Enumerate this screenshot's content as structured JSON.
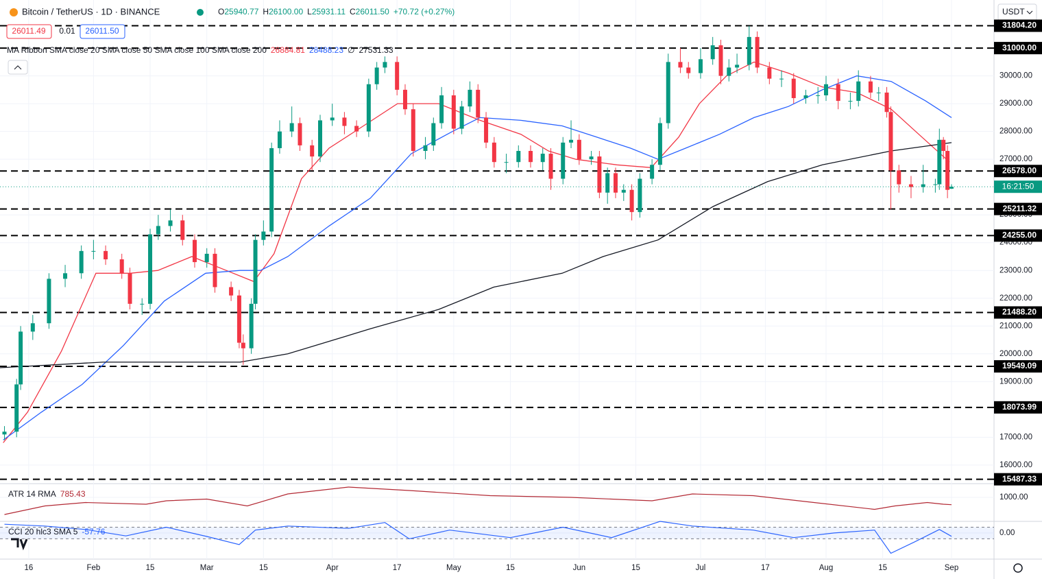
{
  "header": {
    "symbol": "Bitcoin / TetherUS · 1D · BINANCE",
    "ohlc": [
      {
        "label": "O",
        "value": "25940.77"
      },
      {
        "label": "H",
        "value": "26100.00"
      },
      {
        "label": "L",
        "value": "25931.11"
      },
      {
        "label": "C",
        "value": "26011.50"
      }
    ],
    "change": "+70.72 (+0.27%)",
    "bid": "26011.49",
    "spread": "0.01",
    "ask": "26011.50",
    "currency": "USDT",
    "countdown": "16:21:50"
  },
  "chart_data": [
    {
      "type": "candlestick",
      "up_color": "#089981",
      "down_color": "#f23645",
      "xlim": [
        8.9,
        254.5
      ],
      "ylim": [
        15330,
        32730
      ],
      "xticks": [
        {
          "value": 16,
          "label": "16"
        },
        {
          "value": 32,
          "label": "Feb"
        },
        {
          "value": 46,
          "label": "15"
        },
        {
          "value": 60,
          "label": "Mar"
        },
        {
          "value": 74,
          "label": "15"
        },
        {
          "value": 91,
          "label": "Apr"
        },
        {
          "value": 107,
          "label": "17"
        },
        {
          "value": 121,
          "label": "May"
        },
        {
          "value": 135,
          "label": "15"
        },
        {
          "value": 152,
          "label": "Jun"
        },
        {
          "value": 166,
          "label": "15"
        },
        {
          "value": 182,
          "label": "Jul"
        },
        {
          "value": 198,
          "label": "17"
        },
        {
          "value": 213,
          "label": "Aug"
        },
        {
          "value": 227,
          "label": "15"
        },
        {
          "value": 244,
          "label": "Sep"
        }
      ],
      "yticks": [
        {
          "value": 16000,
          "label": "16000.00"
        },
        {
          "value": 17000,
          "label": "17000.00"
        },
        {
          "value": 19000,
          "label": "19000.00"
        },
        {
          "value": 20000,
          "label": "20000.00"
        },
        {
          "value": 21000,
          "label": "21000.00"
        },
        {
          "value": 22000,
          "label": "22000.00"
        },
        {
          "value": 23000,
          "label": "23000.00"
        },
        {
          "value": 24000,
          "label": "24000.00"
        },
        {
          "value": 25000,
          "label": "25000.00"
        },
        {
          "value": 27000,
          "label": "27000.00"
        },
        {
          "value": 28000,
          "label": "28000.00"
        },
        {
          "value": 29000,
          "label": "29000.00"
        },
        {
          "value": 30000,
          "label": "30000.00"
        }
      ],
      "levels": [
        {
          "value": 31804.2,
          "label": "31804.20"
        },
        {
          "value": 31000,
          "label": "31000.00"
        },
        {
          "value": 26578,
          "label": "26578.00"
        },
        {
          "value": 25211.32,
          "label": "25211.32"
        },
        {
          "value": 24255,
          "label": "24255.00"
        },
        {
          "value": 21488.2,
          "label": "21488.20"
        },
        {
          "value": 19549.09,
          "label": "19549.09"
        },
        {
          "value": 18073.99,
          "label": "18073.99"
        },
        {
          "value": 15487.33,
          "label": "15487.33"
        }
      ],
      "x": [
        10,
        13,
        14,
        17,
        21,
        25,
        29,
        32,
        35,
        39,
        41,
        44,
        46,
        48,
        51,
        54,
        57,
        60,
        62,
        66,
        68,
        69,
        71,
        72,
        74,
        76,
        78,
        81,
        83,
        86,
        88,
        91,
        94,
        97,
        100,
        102,
        104,
        107,
        109,
        111,
        114,
        116,
        118,
        121,
        123,
        125,
        127,
        129,
        131,
        134,
        137,
        140,
        143,
        145,
        148,
        150,
        152,
        155,
        157,
        159,
        161,
        163,
        165,
        167,
        170,
        172,
        174,
        177,
        179,
        182,
        185,
        187,
        189,
        191,
        194,
        196,
        199,
        202,
        205,
        208,
        211,
        213,
        216,
        219,
        221,
        224,
        226,
        228,
        229,
        231,
        234,
        237,
        240,
        241,
        242,
        243,
        244
      ],
      "open": [
        17100,
        17200,
        18900,
        20800,
        21100,
        22700,
        22900,
        23700,
        23700,
        23400,
        22900,
        21800,
        21800,
        24300,
        24600,
        24800,
        24100,
        23300,
        23600,
        22400,
        22100,
        20400,
        20200,
        21800,
        24100,
        24400,
        27400,
        28000,
        28300,
        27500,
        27100,
        28400,
        28500,
        28200,
        28000,
        29700,
        30300,
        30500,
        29500,
        28800,
        27300,
        27500,
        28300,
        29300,
        28100,
        28900,
        29500,
        28500,
        27600,
        26900,
        26900,
        27300,
        26900,
        27200,
        26300,
        27600,
        27700,
        27000,
        27100,
        25800,
        26500,
        25800,
        25900,
        25100,
        26300,
        26800,
        28300,
        30500,
        30300,
        30100,
        30600,
        31100,
        30000,
        30300,
        30400,
        31400,
        30300,
        29900,
        29900,
        29200,
        29300,
        29300,
        29700,
        29100,
        29100,
        29800,
        29400,
        29400,
        28700,
        26600,
        26100,
        26000,
        26100,
        26100,
        27700,
        27300,
        25940.77
      ],
      "high": [
        17400,
        19100,
        21000,
        21400,
        22900,
        23200,
        23900,
        24100,
        23900,
        23600,
        23100,
        22000,
        24500,
        25000,
        25200,
        25000,
        24300,
        23800,
        23800,
        22600,
        22300,
        20700,
        22000,
        24300,
        24800,
        27600,
        28400,
        28900,
        28500,
        27700,
        28600,
        29000,
        28700,
        28400,
        29900,
        30500,
        30700,
        30700,
        29700,
        29000,
        27800,
        28500,
        29600,
        29500,
        29100,
        29800,
        29700,
        28700,
        27800,
        27200,
        27500,
        27500,
        27400,
        27400,
        27800,
        28400,
        27900,
        27300,
        27300,
        26700,
        26700,
        26100,
        26100,
        26500,
        27000,
        28500,
        30800,
        31000,
        30500,
        31000,
        31400,
        31300,
        30600,
        30800,
        31800,
        31600,
        30500,
        30200,
        30100,
        29500,
        29600,
        30000,
        29900,
        29400,
        30200,
        30000,
        29600,
        29600,
        28900,
        26800,
        26400,
        26800,
        26300,
        28100,
        27800,
        27500,
        26100
      ],
      "low": [
        16900,
        17000,
        18700,
        20500,
        20900,
        22400,
        22700,
        23400,
        23200,
        22700,
        21600,
        21400,
        21600,
        24100,
        24400,
        23900,
        23100,
        23100,
        22200,
        21900,
        20200,
        19600,
        20000,
        21600,
        23900,
        24200,
        27200,
        27800,
        27300,
        26600,
        26900,
        28200,
        27900,
        27800,
        27800,
        29500,
        30100,
        29300,
        28600,
        27100,
        27000,
        27300,
        28100,
        27900,
        27900,
        28700,
        28300,
        27400,
        26700,
        26500,
        26700,
        26700,
        26600,
        25900,
        26100,
        27400,
        26800,
        26800,
        25600,
        25400,
        25600,
        25500,
        24800,
        24900,
        26100,
        26600,
        28100,
        30100,
        29900,
        29900,
        30400,
        29700,
        29800,
        30100,
        30200,
        30100,
        29700,
        29600,
        29000,
        29000,
        29000,
        29100,
        28800,
        28800,
        28900,
        29200,
        29100,
        28500,
        25200,
        25800,
        25600,
        25800,
        25800,
        25900,
        27000,
        25600,
        25931.11
      ],
      "close": [
        17200,
        18900,
        20800,
        21100,
        22700,
        22900,
        23700,
        23700,
        23400,
        22900,
        21800,
        21800,
        24300,
        24600,
        24800,
        24100,
        23300,
        23600,
        22400,
        22100,
        20400,
        20200,
        21800,
        24100,
        24400,
        27400,
        28000,
        28300,
        27500,
        27100,
        28400,
        28500,
        28200,
        28000,
        29700,
        30300,
        30500,
        29500,
        28800,
        27300,
        27500,
        28300,
        29300,
        28100,
        28900,
        29500,
        28500,
        27600,
        26900,
        26900,
        27300,
        26900,
        27200,
        26300,
        27600,
        27700,
        27000,
        27100,
        25800,
        26500,
        25800,
        25900,
        25100,
        26300,
        26800,
        28300,
        30500,
        30300,
        30100,
        30600,
        31100,
        30000,
        30300,
        30400,
        31400,
        30300,
        29900,
        29900,
        29200,
        29300,
        29300,
        29700,
        29100,
        29100,
        29800,
        29400,
        29400,
        28700,
        26600,
        26100,
        26000,
        26100,
        26100,
        27700,
        27300,
        25900,
        26011.5
      ],
      "indicator_title": "MA Ribbon SMA close 20 SMA close 50 SMA close 100 SMA close 200",
      "legend_values": [
        {
          "text": "26884.81",
          "color": "#f23645"
        },
        {
          "text": "28488.23",
          "color": "#2962ff"
        },
        {
          "text": "∅",
          "color": "#131722"
        },
        {
          "text": "27531.33",
          "color": "#131722"
        }
      ],
      "series": [
        {
          "color": "#f23645",
          "x": [
            9.7,
            15.7,
            24.1,
            32.6,
            41.1,
            47.9,
            56.3,
            64.8,
            71.6,
            76.6,
            83.4,
            90.2,
            98.7,
            107.1,
            117.3,
            127.5,
            137.6,
            144.4,
            151.2,
            161.3,
            169.8,
            176.6,
            181.7,
            188.4,
            195.2,
            203.7,
            212.1,
            220.6,
            229.1,
            235.9,
            243.5
          ],
          "values": [
            16800,
            17900,
            20100,
            22900,
            22900,
            23000,
            23500,
            23000,
            22600,
            23600,
            26300,
            27400,
            28200,
            29000,
            29000,
            28400,
            27900,
            27300,
            27000,
            26800,
            26700,
            27800,
            29000,
            30000,
            30500,
            30100,
            29600,
            29400,
            28800,
            27900,
            26900
          ]
        },
        {
          "color": "#2962ff",
          "x": [
            9.7,
            19.1,
            29.2,
            39.4,
            49.5,
            59.7,
            68.2,
            73.3,
            80,
            90.2,
            100.4,
            110.5,
            120.7,
            127.5,
            137.6,
            147.8,
            156.3,
            164.7,
            171.5,
            178.3,
            186.7,
            195.2,
            203.7,
            212.1,
            220.6,
            229.1,
            237.6,
            244
          ],
          "values": [
            16900,
            17900,
            18900,
            20300,
            21900,
            22900,
            23000,
            23000,
            23500,
            24600,
            25600,
            27200,
            28000,
            28500,
            28400,
            28200,
            27800,
            27400,
            27000,
            27400,
            27900,
            28500,
            28900,
            29500,
            30000,
            29800,
            29100,
            28500
          ]
        },
        {
          "color": "#131722",
          "x": [
            8.9,
            34.3,
            68.2,
            80,
            100.4,
            117.3,
            130.9,
            147.8,
            157.9,
            171.5,
            185.1,
            198.6,
            212.1,
            229.1,
            244
          ],
          "values": [
            19500,
            19700,
            19700,
            20000,
            20900,
            21600,
            22400,
            22900,
            23500,
            24100,
            25300,
            26200,
            26800,
            27300,
            27600
          ]
        }
      ]
    },
    {
      "type": "line",
      "title": "ATR 14 RMA",
      "value_label": "785.43",
      "color": "#b22833",
      "ylim": [
        300,
        1400
      ],
      "yticks": [
        {
          "value": 1000,
          "label": "1000.00"
        }
      ],
      "x": [
        10,
        20,
        30,
        45,
        50,
        60,
        70,
        80,
        95,
        110,
        130,
        150,
        170,
        180,
        195,
        210,
        225,
        230,
        238,
        242,
        244
      ],
      "values": [
        500,
        750,
        850,
        800,
        900,
        950,
        750,
        1100,
        1300,
        1200,
        1050,
        1000,
        900,
        1100,
        1050,
        850,
        650,
        750,
        850,
        800,
        785.43
      ]
    },
    {
      "type": "line",
      "title": "CCI 20 hlc3 SMA 5",
      "value_label": "-57.76",
      "color": "#2962ff",
      "ylim": [
        -450,
        200
      ],
      "yticks": [
        {
          "value": 0,
          "label": "0.00"
        }
      ],
      "band": [
        -100,
        100
      ],
      "x": [
        10,
        20,
        30,
        40,
        50,
        60,
        68,
        72,
        80,
        95,
        104,
        110,
        120,
        135,
        148,
        160,
        172,
        180,
        195,
        205,
        215,
        225,
        229,
        235,
        241,
        244
      ],
      "values": [
        150,
        120,
        60,
        -50,
        100,
        -60,
        -200,
        50,
        120,
        80,
        180,
        -100,
        50,
        -80,
        100,
        -80,
        200,
        120,
        50,
        -80,
        0,
        50,
        -350,
        -150,
        60,
        -57.76
      ]
    }
  ]
}
